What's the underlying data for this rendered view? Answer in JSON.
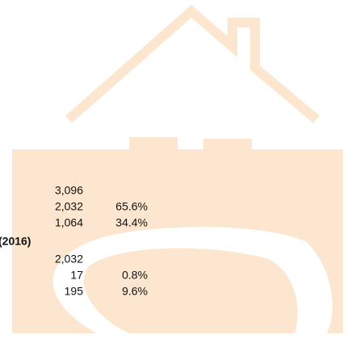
{
  "sections": [
    {
      "rows": [
        [
          "3,096"
        ],
        [
          "2,032",
          "65.6%"
        ],
        [
          "1,064",
          "34.4%"
        ]
      ]
    },
    {
      "heading": "(2016)",
      "rows": [
        [
          "2,032"
        ],
        [
          "17",
          "0.8%"
        ],
        [
          "195",
          "9.6%"
        ]
      ]
    }
  ]
}
